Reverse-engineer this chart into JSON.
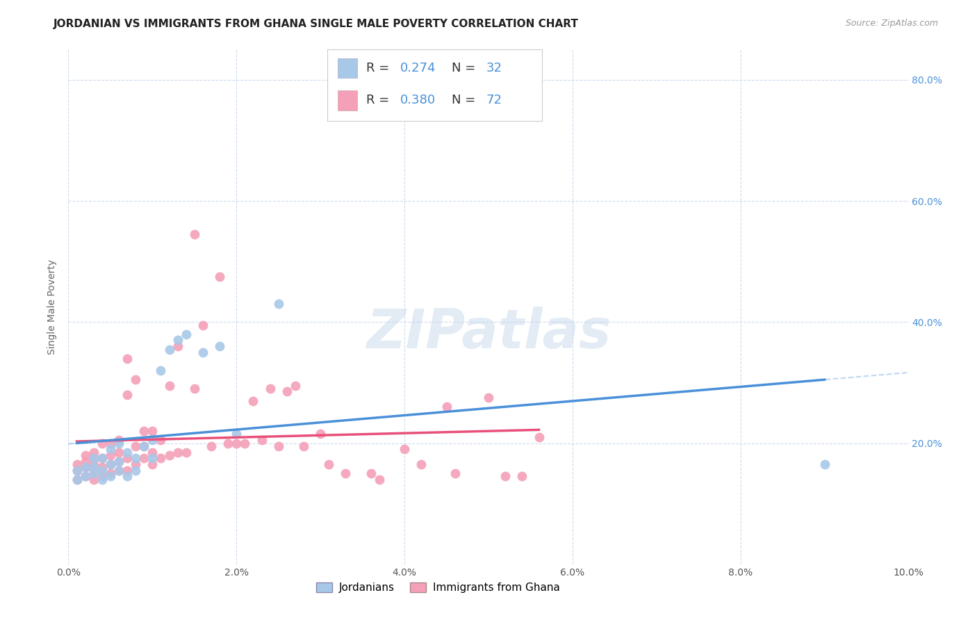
{
  "title": "JORDANIAN VS IMMIGRANTS FROM GHANA SINGLE MALE POVERTY CORRELATION CHART",
  "source": "Source: ZipAtlas.com",
  "ylabel": "Single Male Poverty",
  "xlim": [
    0.0,
    0.1
  ],
  "ylim": [
    0.0,
    0.85
  ],
  "xtick_labels": [
    "0.0%",
    "2.0%",
    "4.0%",
    "6.0%",
    "8.0%",
    "10.0%"
  ],
  "xtick_vals": [
    0.0,
    0.02,
    0.04,
    0.06,
    0.08,
    0.1
  ],
  "ytick_vals": [
    0.2,
    0.4,
    0.6,
    0.8
  ],
  "ytick_labels": [
    "20.0%",
    "40.0%",
    "60.0%",
    "80.0%"
  ],
  "jordanian_color": "#a8c8e8",
  "ghana_color": "#f4a0b8",
  "jordan_R": 0.274,
  "jordan_N": 32,
  "ghana_R": 0.38,
  "ghana_N": 72,
  "jordanian_line_color": "#4a90d9",
  "ghana_line_color": "#e8507a",
  "watermark": "ZIPatlas",
  "jordanian_x": [
    0.001,
    0.001,
    0.002,
    0.002,
    0.003,
    0.003,
    0.003,
    0.004,
    0.004,
    0.004,
    0.005,
    0.005,
    0.005,
    0.006,
    0.006,
    0.006,
    0.007,
    0.007,
    0.008,
    0.008,
    0.009,
    0.01,
    0.01,
    0.011,
    0.012,
    0.013,
    0.014,
    0.016,
    0.018,
    0.02,
    0.025,
    0.09
  ],
  "jordanian_y": [
    0.14,
    0.155,
    0.145,
    0.16,
    0.15,
    0.16,
    0.175,
    0.14,
    0.155,
    0.175,
    0.145,
    0.165,
    0.19,
    0.155,
    0.17,
    0.2,
    0.145,
    0.185,
    0.155,
    0.175,
    0.195,
    0.175,
    0.205,
    0.32,
    0.355,
    0.37,
    0.38,
    0.35,
    0.36,
    0.215,
    0.43,
    0.165
  ],
  "ghana_x": [
    0.001,
    0.001,
    0.001,
    0.002,
    0.002,
    0.002,
    0.002,
    0.003,
    0.003,
    0.003,
    0.003,
    0.003,
    0.004,
    0.004,
    0.004,
    0.004,
    0.005,
    0.005,
    0.005,
    0.005,
    0.006,
    0.006,
    0.006,
    0.006,
    0.007,
    0.007,
    0.007,
    0.007,
    0.008,
    0.008,
    0.008,
    0.009,
    0.009,
    0.009,
    0.01,
    0.01,
    0.01,
    0.011,
    0.011,
    0.012,
    0.012,
    0.013,
    0.013,
    0.014,
    0.015,
    0.015,
    0.016,
    0.017,
    0.018,
    0.019,
    0.02,
    0.021,
    0.022,
    0.023,
    0.024,
    0.025,
    0.026,
    0.027,
    0.028,
    0.03,
    0.031,
    0.033,
    0.036,
    0.037,
    0.04,
    0.042,
    0.045,
    0.046,
    0.05,
    0.052,
    0.054,
    0.056
  ],
  "ghana_y": [
    0.14,
    0.155,
    0.165,
    0.145,
    0.16,
    0.17,
    0.18,
    0.14,
    0.155,
    0.165,
    0.175,
    0.185,
    0.145,
    0.16,
    0.175,
    0.2,
    0.15,
    0.165,
    0.18,
    0.2,
    0.155,
    0.17,
    0.185,
    0.205,
    0.155,
    0.175,
    0.28,
    0.34,
    0.165,
    0.195,
    0.305,
    0.175,
    0.195,
    0.22,
    0.165,
    0.185,
    0.22,
    0.175,
    0.205,
    0.18,
    0.295,
    0.185,
    0.36,
    0.185,
    0.29,
    0.545,
    0.395,
    0.195,
    0.475,
    0.2,
    0.2,
    0.2,
    0.27,
    0.205,
    0.29,
    0.195,
    0.285,
    0.295,
    0.195,
    0.215,
    0.165,
    0.15,
    0.15,
    0.14,
    0.19,
    0.165,
    0.26,
    0.15,
    0.275,
    0.145,
    0.145,
    0.21
  ]
}
